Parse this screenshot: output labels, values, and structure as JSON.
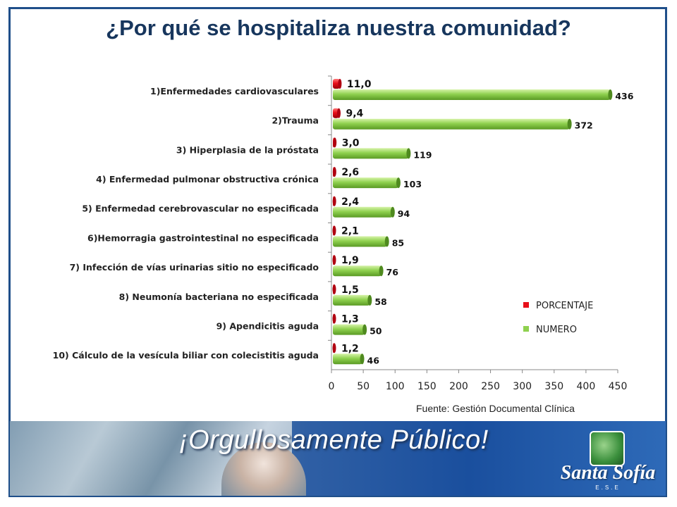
{
  "title": "¿Por qué se hospitaliza nuestra comunidad?",
  "source": "Fuente: Gestión Documental Clínica",
  "banner": {
    "slogan": "¡Orgullosamente Público!",
    "logo_name": "Santa Sofía",
    "logo_sub": "E.S.E"
  },
  "colors": {
    "title": "#17365d",
    "frame": "#1f4f8a",
    "porcentaje": "#e8101a",
    "numero": "#8fd14f"
  },
  "chart_data": {
    "type": "bar",
    "orientation": "horizontal",
    "categories": [
      "1)Enfermedades cardiovasculares",
      "2)Trauma",
      "3) Hiperplasia de la próstata",
      "4) Enfermedad pulmonar obstructiva crónica",
      "5) Enfermedad cerebrovascular no especificada",
      "6)Hemorragia gastrointestinal no especificada",
      "7) Infección de vías urinarias sitio no especificado",
      "8) Neumonía bacteriana no especificada",
      "9) Apendicitis aguda",
      "10) Cálculo de la vesícula biliar con colecistitis aguda"
    ],
    "series": [
      {
        "name": "PORCENTAJE",
        "values": [
          11.0,
          9.4,
          3.0,
          2.6,
          2.4,
          2.1,
          1.9,
          1.5,
          1.3,
          1.2
        ],
        "labels": [
          "11,0",
          "9,4",
          "3,0",
          "2,6",
          "2,4",
          "2,1",
          "1,9",
          "1,5",
          "1,3",
          "1,2"
        ]
      },
      {
        "name": "NUMERO",
        "values": [
          436,
          372,
          119,
          103,
          94,
          85,
          76,
          58,
          50,
          46
        ],
        "labels": [
          "436",
          "372",
          "119",
          "103",
          "94",
          "85",
          "76",
          "58",
          "50",
          "46"
        ]
      }
    ],
    "xlim": [
      0,
      450
    ],
    "xticks": [
      "0",
      "50",
      "100",
      "150",
      "200",
      "250",
      "300",
      "350",
      "400",
      "450"
    ],
    "legend": "inside-bottom-right",
    "grid": false
  }
}
